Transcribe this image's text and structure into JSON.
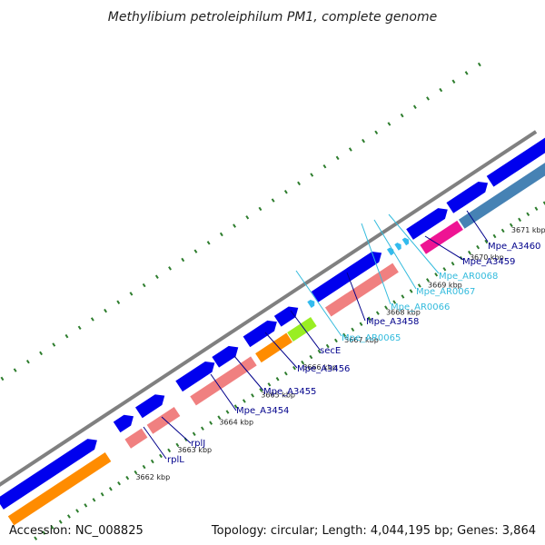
{
  "title": "Methylibium petroleiphilum PM1, complete genome",
  "accession": "Accession: NC_008825",
  "summary": "Topology: circular; Length: 4,044,195 bp; Genes: 3,864",
  "colors": {
    "backbone": "#808080",
    "cds": "#0000ee",
    "cog_orange": "#ff8c00",
    "cog_pink": "#f08080",
    "cog_lime": "#99ee22",
    "cog_magenta": "#ee1493",
    "cog_steel": "#4682b4",
    "trna": "#33bbee",
    "ticks": "#2d7d2d",
    "label_dark": "#00008b",
    "label_light": "#33bbdd"
  },
  "ticks": [
    "3662 kbp",
    "3663 kbp",
    "3664 kbp",
    "3665 kbp",
    "3666 kbp",
    "3667 kbp",
    "3668 kbp",
    "3669 kbp",
    "3670 kbp",
    "3671 kbp"
  ],
  "genes": [
    {
      "label": "rplL",
      "color": "label_dark"
    },
    {
      "label": "rplJ",
      "color": "label_dark"
    },
    {
      "label": "Mpe_A3454",
      "color": "label_dark"
    },
    {
      "label": "Mpe_A3455",
      "color": "label_dark"
    },
    {
      "label": "Mpe_A3456",
      "color": "label_dark"
    },
    {
      "label": "secE",
      "color": "label_dark"
    },
    {
      "label": "Mpe_AR0065",
      "color": "label_light"
    },
    {
      "label": "Mpe_A3458",
      "color": "label_dark"
    },
    {
      "label": "Mpe_AR0066",
      "color": "label_light"
    },
    {
      "label": "Mpe_AR0067",
      "color": "label_light"
    },
    {
      "label": "Mpe_AR0068",
      "color": "label_light"
    },
    {
      "label": "Mpe_A3459",
      "color": "label_dark"
    },
    {
      "label": "Mpe_A3460",
      "color": "label_dark"
    }
  ]
}
